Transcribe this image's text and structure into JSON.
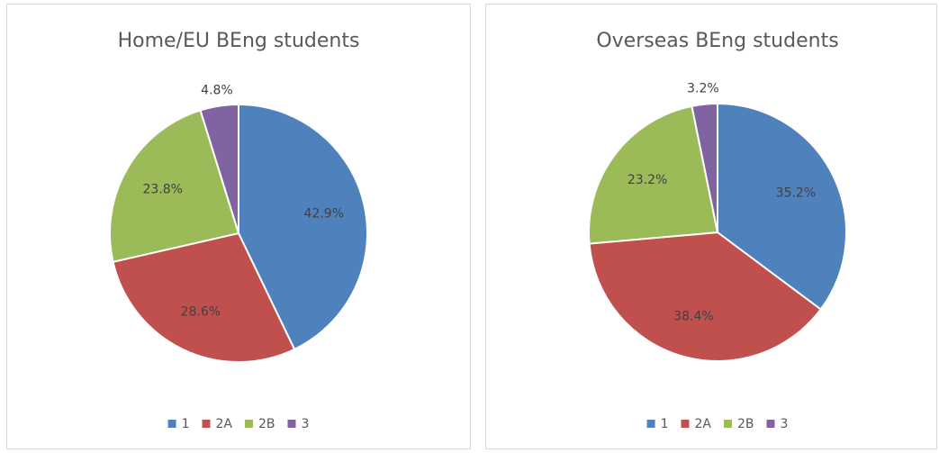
{
  "chart_data": [
    {
      "type": "pie",
      "title": "Home/EU BEng students",
      "categories": [
        "1",
        "2A",
        "2B",
        "3"
      ],
      "values": [
        42.9,
        28.6,
        23.8,
        4.8
      ],
      "value_labels": [
        "42.9%",
        "28.6%",
        "23.8%",
        "4.8%"
      ],
      "colors": [
        "#4f81bd",
        "#c0504d",
        "#9bbb59",
        "#8064a2"
      ],
      "legend": "bottom"
    },
    {
      "type": "pie",
      "title": "Overseas BEng students",
      "categories": [
        "1",
        "2A",
        "2B",
        "3"
      ],
      "values": [
        35.2,
        38.4,
        23.2,
        3.2
      ],
      "value_labels": [
        "35.2%",
        "38.4%",
        "23.2%",
        "3.2%"
      ],
      "colors": [
        "#4f81bd",
        "#c0504d",
        "#9bbb59",
        "#8064a2"
      ],
      "legend": "bottom"
    }
  ]
}
